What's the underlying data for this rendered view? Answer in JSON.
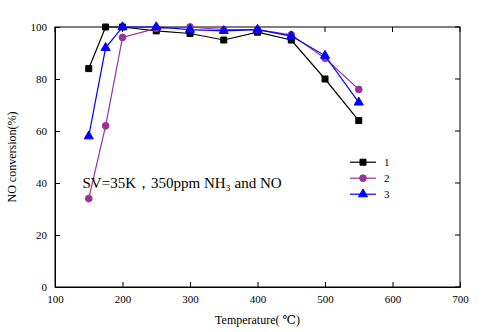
{
  "chart_data": {
    "type": "line",
    "x_label": "Temperature( ℃)",
    "y_label": "NO conversion(%)",
    "annotation": "SV=35K，350ppm NH₃ and NO",
    "x": [
      150,
      175,
      200,
      250,
      300,
      350,
      400,
      450,
      500,
      550
    ],
    "series": [
      {
        "name": "1",
        "color": "#000000",
        "marker": "square",
        "line_style": "solid",
        "values": [
          84,
          100,
          100,
          98.5,
          97.5,
          95,
          98,
          95,
          80,
          64
        ]
      },
      {
        "name": "2",
        "color": "#993399",
        "marker": "circle",
        "line_style": "solid",
        "values": [
          34,
          62,
          96,
          99.5,
          100,
          99,
          99,
          97,
          88,
          76
        ]
      },
      {
        "name": "3",
        "color": "#0000ff",
        "marker": "triangle",
        "line_style": "solid",
        "values": [
          58,
          92,
          100,
          100,
          99,
          98.5,
          99,
          96.5,
          89,
          71
        ]
      }
    ],
    "xlim": [
      100,
      700
    ],
    "xticks": [
      100,
      200,
      300,
      400,
      500,
      600,
      700
    ],
    "ylim": [
      0,
      100
    ],
    "yticks": [
      0,
      20,
      40,
      60,
      80,
      100
    ],
    "grid": false,
    "legend": "right"
  }
}
